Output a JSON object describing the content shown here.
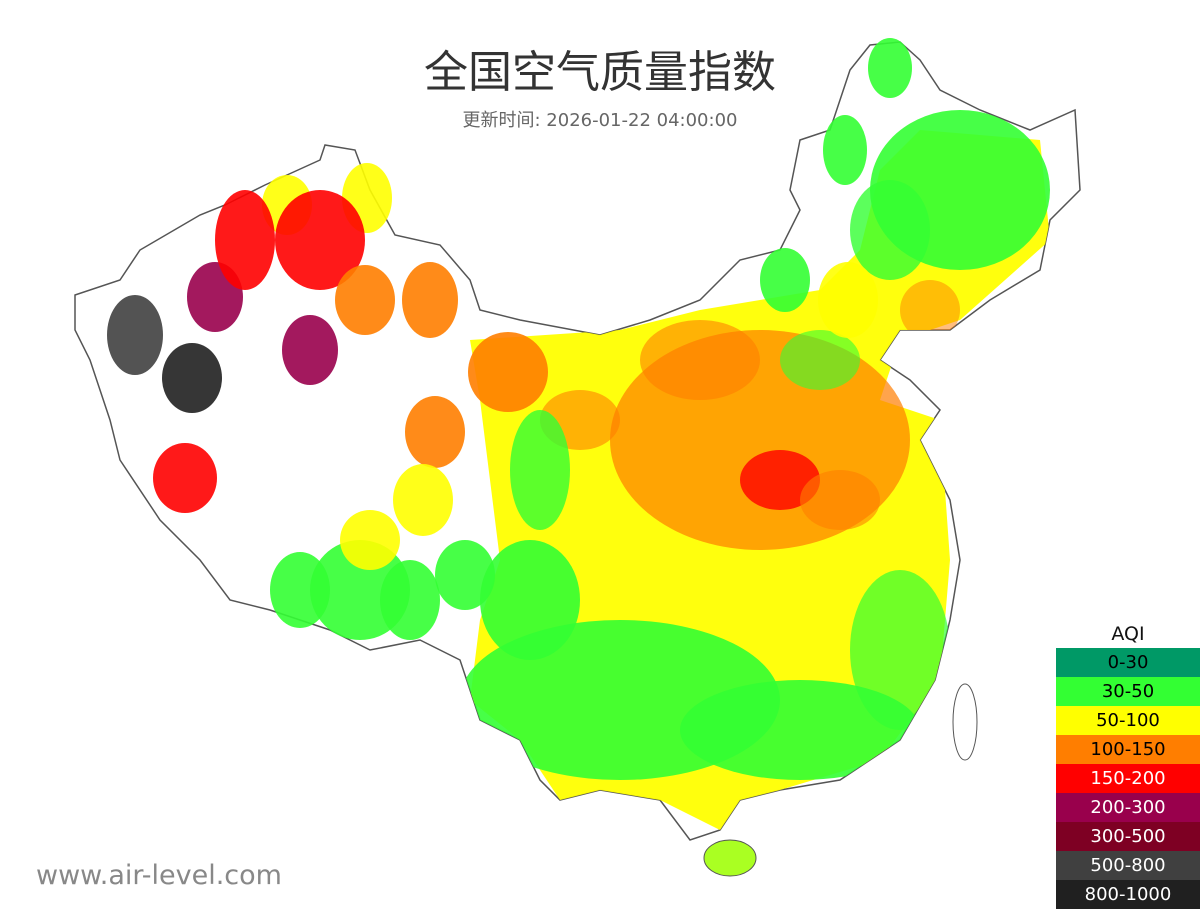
{
  "title": "全国空气质量指数",
  "update_label": "更新时间: 2026-01-22 04:00:00",
  "watermark": "www.air-level.com",
  "legend": {
    "title": "AQI",
    "items": [
      {
        "label": "0-30",
        "color": "#009966",
        "text": "#000"
      },
      {
        "label": "30-50",
        "color": "#33ff33",
        "text": "#000"
      },
      {
        "label": "50-100",
        "color": "#ffff00",
        "text": "#000"
      },
      {
        "label": "100-150",
        "color": "#ff7e00",
        "text": "#000"
      },
      {
        "label": "150-200",
        "color": "#ff0000",
        "text": "#fff"
      },
      {
        "label": "200-300",
        "color": "#99004c",
        "text": "#fff"
      },
      {
        "label": "300-500",
        "color": "#7e0023",
        "text": "#fff"
      },
      {
        "label": "500-800",
        "color": "#404040",
        "text": "#fff"
      },
      {
        "label": "800-1000",
        "color": "#202020",
        "text": "#fff"
      }
    ]
  }
}
